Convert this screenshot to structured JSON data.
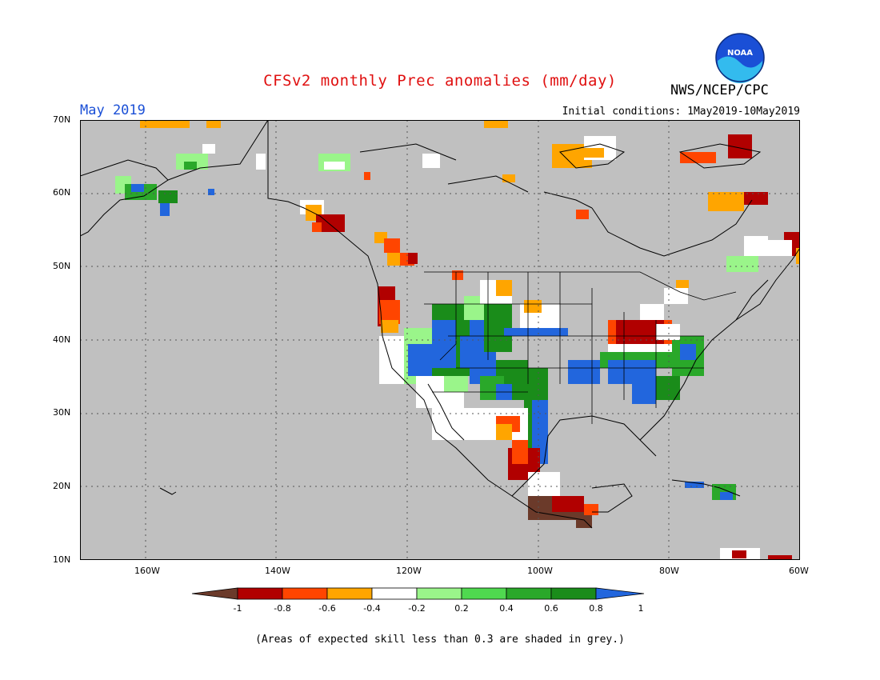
{
  "map": {
    "title": "CFSv2 monthly Prec anomalies (mm/day)",
    "agency": "NWS/NCEP/CPC",
    "logo_text": "NOAA",
    "valid_month": "May 2019",
    "initial_conditions": "Initial conditions: 1May2019-10May2019",
    "lat_labels": [
      "70N",
      "60N",
      "50N",
      "40N",
      "30N",
      "20N",
      "10N"
    ],
    "lon_labels": [
      "160W",
      "140W",
      "120W",
      "100W",
      "80W",
      "60W"
    ],
    "footnote": "(Areas of expected skill less than 0.3 are shaded in grey.)"
  },
  "legend": {
    "tick_labels": [
      "-1",
      "-0.8",
      "-0.6",
      "-0.4",
      "-0.2",
      "0.2",
      "0.4",
      "0.6",
      "0.8",
      "1"
    ],
    "colors": [
      "#6b3a2a",
      "#b10000",
      "#ff4500",
      "#ffa500",
      "#ffffff",
      "#9af58a",
      "#4fd94f",
      "#2aa82a",
      "#1a8c1a",
      "#2266dd"
    ]
  },
  "colors": {
    "grey_background": "#c0c0c0",
    "title_red": "#e01010",
    "month_blue": "#1a4fd6"
  }
}
